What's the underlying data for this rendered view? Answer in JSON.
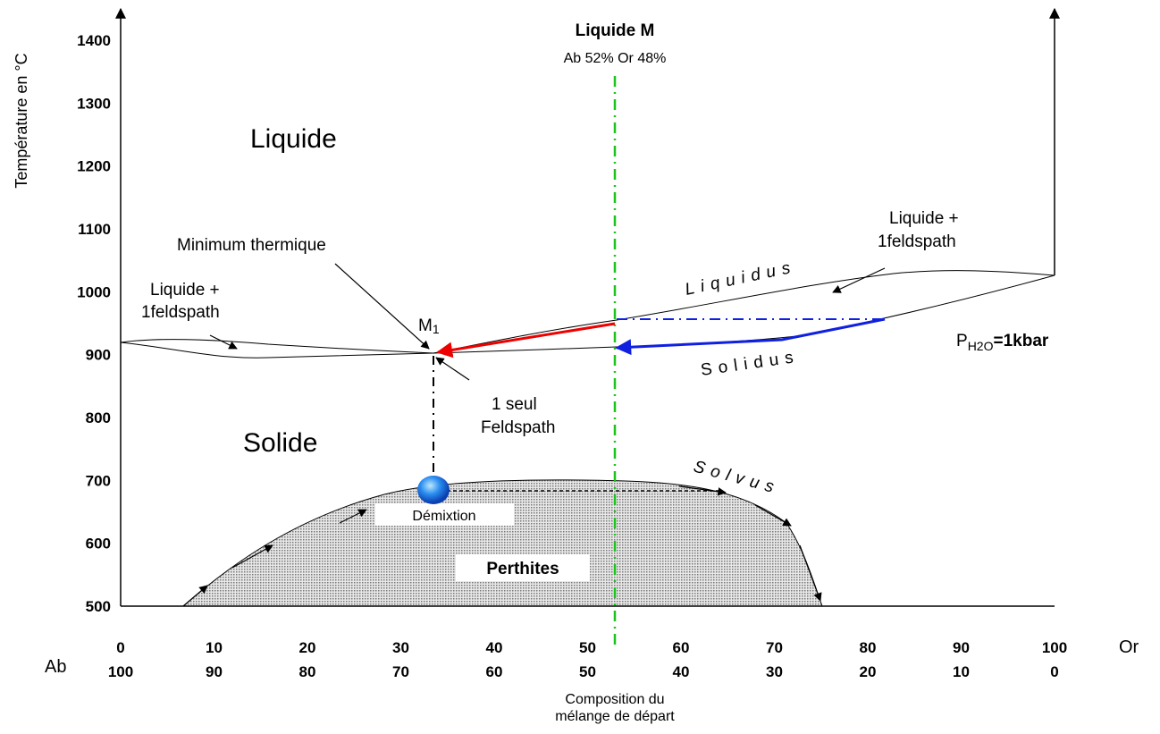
{
  "axis": {
    "y_label": "Température en °C",
    "y_ticks": [
      "1400",
      "1300",
      "1200",
      "1100",
      "1000",
      "900",
      "800",
      "700",
      "600",
      "500"
    ],
    "x_ticks_or": [
      "0",
      "10",
      "20",
      "30",
      "40",
      "50",
      "60",
      "70",
      "80",
      "90",
      "100"
    ],
    "x_ticks_ab": [
      "100",
      "90",
      "80",
      "70",
      "60",
      "50",
      "40",
      "30",
      "20",
      "10",
      "0"
    ],
    "x_end_label": "Or",
    "x_start_label": "Ab",
    "x_caption": [
      "Composition du",
      "mélange de départ"
    ]
  },
  "labels": {
    "liquide_m": "Liquide M",
    "liquide_m_comp": "Ab 52% Or 48%",
    "liquide": "Liquide",
    "solide": "Solide",
    "minimum": "Minimum thermique",
    "m1": "M",
    "m1_sub": "1",
    "left_two_phase": [
      "Liquide +",
      "1feldspath"
    ],
    "right_two_phase": [
      "Liquide +",
      "1feldspath"
    ],
    "single": [
      "1 seul",
      "Feldspath"
    ],
    "liquidus": "Liquidus",
    "solidus": "Solidus",
    "solvus": "Solvus",
    "pressure_p": "P",
    "pressure_sub": "H2O",
    "pressure_rest": "=1kbar",
    "demixtion": "Démixtion",
    "perthites": "Perthites"
  }
}
